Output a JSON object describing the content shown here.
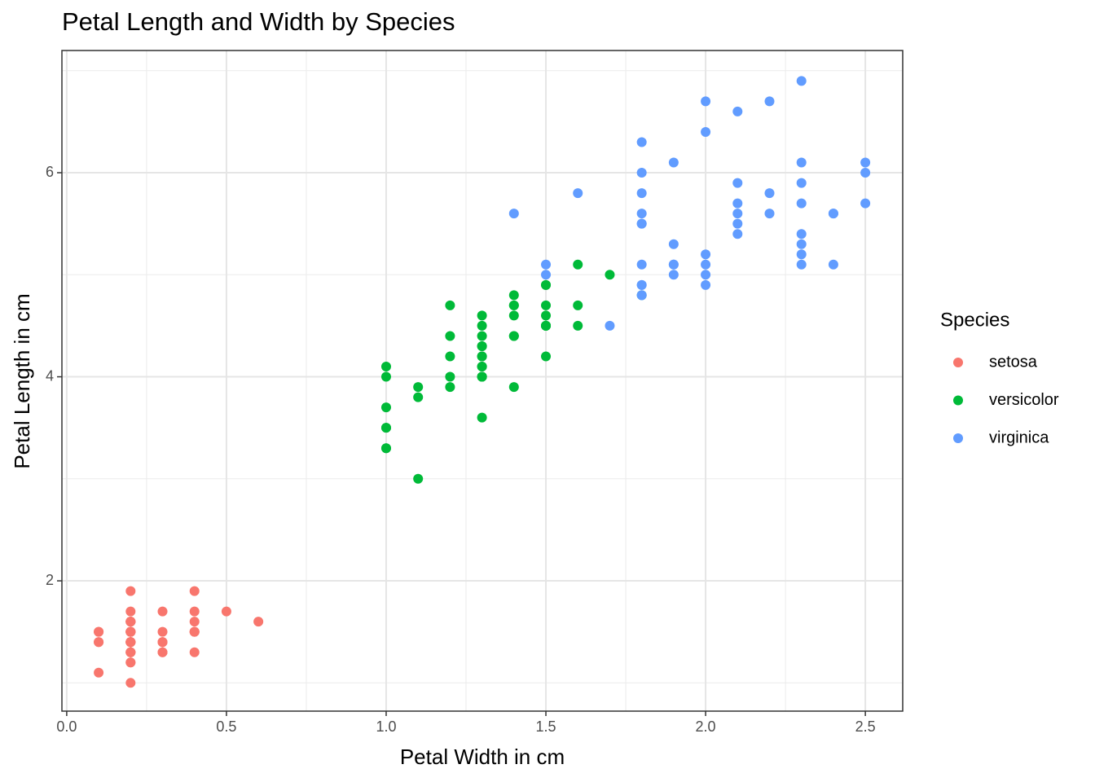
{
  "chart_data": {
    "type": "scatter",
    "title": "Petal Length and Width by Species",
    "x_label": "Petal Width in cm",
    "y_label": "Petal Length in cm",
    "legend_title": "Species",
    "legend": "right",
    "grid": true,
    "xlim": [
      -0.015,
      2.617
    ],
    "ylim": [
      0.723,
      7.198
    ],
    "xticks": [
      {
        "value": 0,
        "label": "0.0"
      },
      0.5,
      {
        "value": 1,
        "label": "1.0"
      },
      1.5,
      {
        "value": 2,
        "label": "2.0"
      },
      2.5
    ],
    "yticks": [
      2,
      4,
      6
    ],
    "x_minor_grid": [
      0.25,
      0.75,
      1.25,
      1.75,
      2.25
    ],
    "y_minor_grid": [
      1,
      3,
      5,
      7
    ],
    "series": [
      {
        "name": "setosa",
        "color": "#f8766d",
        "x": [
          0.2,
          0.2,
          0.2,
          0.2,
          0.2,
          0.4,
          0.3,
          0.2,
          0.2,
          0.1,
          0.2,
          0.2,
          0.1,
          0.1,
          0.2,
          0.4,
          0.4,
          0.3,
          0.3,
          0.3,
          0.2,
          0.4,
          0.2,
          0.5,
          0.2,
          0.2,
          0.4,
          0.2,
          0.2,
          0.2,
          0.2,
          0.4,
          0.1,
          0.2,
          0.2,
          0.2,
          0.2,
          0.1,
          0.2,
          0.2,
          0.3,
          0.3,
          0.2,
          0.6,
          0.4,
          0.3,
          0.2,
          0.2,
          0.2,
          0.2
        ],
        "values": [
          1.4,
          1.4,
          1.3,
          1.5,
          1.4,
          1.7,
          1.4,
          1.5,
          1.4,
          1.5,
          1.5,
          1.6,
          1.4,
          1.1,
          1.2,
          1.5,
          1.3,
          1.4,
          1.7,
          1.5,
          1.7,
          1.5,
          1.0,
          1.7,
          1.9,
          1.6,
          1.6,
          1.5,
          1.4,
          1.6,
          1.6,
          1.5,
          1.5,
          1.4,
          1.5,
          1.2,
          1.3,
          1.4,
          1.3,
          1.5,
          1.3,
          1.3,
          1.3,
          1.6,
          1.9,
          1.4,
          1.6,
          1.4,
          1.5,
          1.4
        ]
      },
      {
        "name": "versicolor",
        "color": "#00ba38",
        "x": [
          1.4,
          1.5,
          1.5,
          1.3,
          1.5,
          1.3,
          1.6,
          1.0,
          1.3,
          1.4,
          1.0,
          1.5,
          1.0,
          1.4,
          1.3,
          1.4,
          1.5,
          1.0,
          1.5,
          1.1,
          1.8,
          1.3,
          1.5,
          1.2,
          1.3,
          1.4,
          1.4,
          1.7,
          1.5,
          1.0,
          1.1,
          1.0,
          1.2,
          1.6,
          1.5,
          1.6,
          1.5,
          1.3,
          1.3,
          1.3,
          1.2,
          1.4,
          1.2,
          1.0,
          1.3,
          1.2,
          1.3,
          1.3,
          1.1,
          1.3
        ],
        "values": [
          4.7,
          4.5,
          4.9,
          4.0,
          4.6,
          4.5,
          4.7,
          3.3,
          4.6,
          3.9,
          3.5,
          4.2,
          4.0,
          4.7,
          3.6,
          4.4,
          4.5,
          4.1,
          4.5,
          3.9,
          4.8,
          4.0,
          4.9,
          4.7,
          4.3,
          4.4,
          4.8,
          5.0,
          4.5,
          3.5,
          3.8,
          3.7,
          3.9,
          5.1,
          4.5,
          4.5,
          4.7,
          4.4,
          4.1,
          4.0,
          4.4,
          4.6,
          4.0,
          3.3,
          4.2,
          4.2,
          4.2,
          4.3,
          3.0,
          4.1
        ]
      },
      {
        "name": "virginica",
        "color": "#619cff",
        "x": [
          2.5,
          1.9,
          2.1,
          1.8,
          2.2,
          2.1,
          1.7,
          1.8,
          1.8,
          2.5,
          2.0,
          1.9,
          2.1,
          2.0,
          2.4,
          2.3,
          1.8,
          2.2,
          2.3,
          1.5,
          2.3,
          2.0,
          2.0,
          1.8,
          2.1,
          1.8,
          1.8,
          1.8,
          2.1,
          1.6,
          1.9,
          2.0,
          2.2,
          1.5,
          1.4,
          2.3,
          2.4,
          1.8,
          1.8,
          2.1,
          2.4,
          2.3,
          1.9,
          2.3,
          2.5,
          2.3,
          1.9,
          2.0,
          2.3,
          1.8
        ],
        "values": [
          6.0,
          5.1,
          5.9,
          5.6,
          5.8,
          6.6,
          4.5,
          6.3,
          5.8,
          6.1,
          5.1,
          5.3,
          5.5,
          5.0,
          5.1,
          5.3,
          5.5,
          6.7,
          6.9,
          5.0,
          5.7,
          4.9,
          6.7,
          4.9,
          5.7,
          6.0,
          4.8,
          4.9,
          5.6,
          5.8,
          6.1,
          6.4,
          5.6,
          5.1,
          5.6,
          6.1,
          5.6,
          5.5,
          4.8,
          5.4,
          5.6,
          5.1,
          5.1,
          5.9,
          5.7,
          5.2,
          5.0,
          5.2,
          5.4,
          5.1
        ]
      }
    ]
  }
}
